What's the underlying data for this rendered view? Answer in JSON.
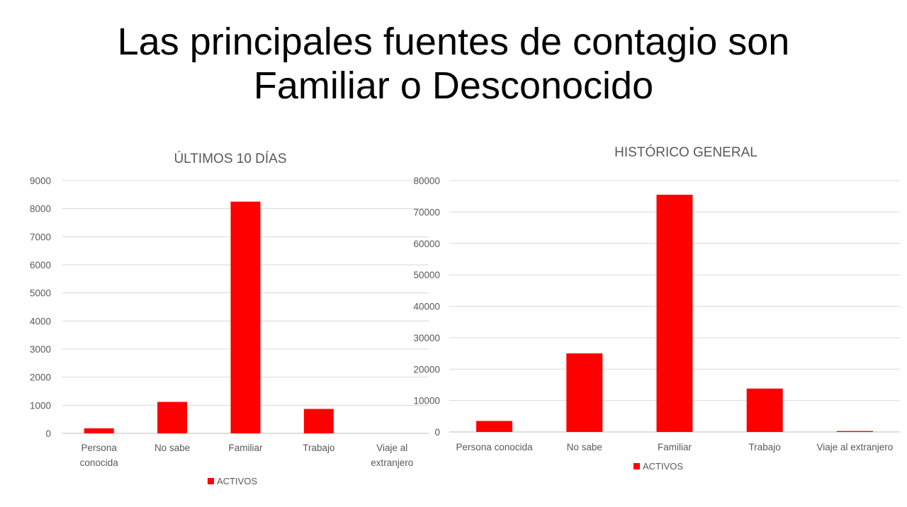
{
  "slide": {
    "title_line1": "Las principales fuentes de contagio son",
    "title_line2": "Familiar o Desconocido",
    "bar_color": "#ff0000"
  },
  "chart_data": [
    {
      "type": "bar",
      "title": "ÚLTIMOS 10 DÍAS",
      "categories": [
        "Persona conocida",
        "No sabe",
        "Familiar",
        "Trabajo",
        "Viaje al extranjero"
      ],
      "series": [
        {
          "name": "ACTIVOS",
          "values": [
            180,
            1120,
            8250,
            870,
            0
          ]
        }
      ],
      "ylim": [
        0,
        9000
      ],
      "yticks": [
        "0",
        "1000",
        "2000",
        "3000",
        "4000",
        "5000",
        "6000",
        "7000",
        "8000",
        "9000"
      ],
      "grid": true,
      "legend": "bottom"
    },
    {
      "type": "bar",
      "title": "HISTÓRICO GENERAL",
      "categories": [
        "Persona conocida",
        "No sabe",
        "Familiar",
        "Trabajo",
        "Viaje al extranjero"
      ],
      "series": [
        {
          "name": "ACTIVOS",
          "values": [
            3500,
            25000,
            75500,
            13800,
            300
          ]
        }
      ],
      "ylim": [
        0,
        80000
      ],
      "yticks": [
        "0",
        "10000",
        "20000",
        "30000",
        "40000",
        "50000",
        "60000",
        "70000",
        "80000"
      ],
      "grid": true,
      "legend": "bottom"
    }
  ]
}
